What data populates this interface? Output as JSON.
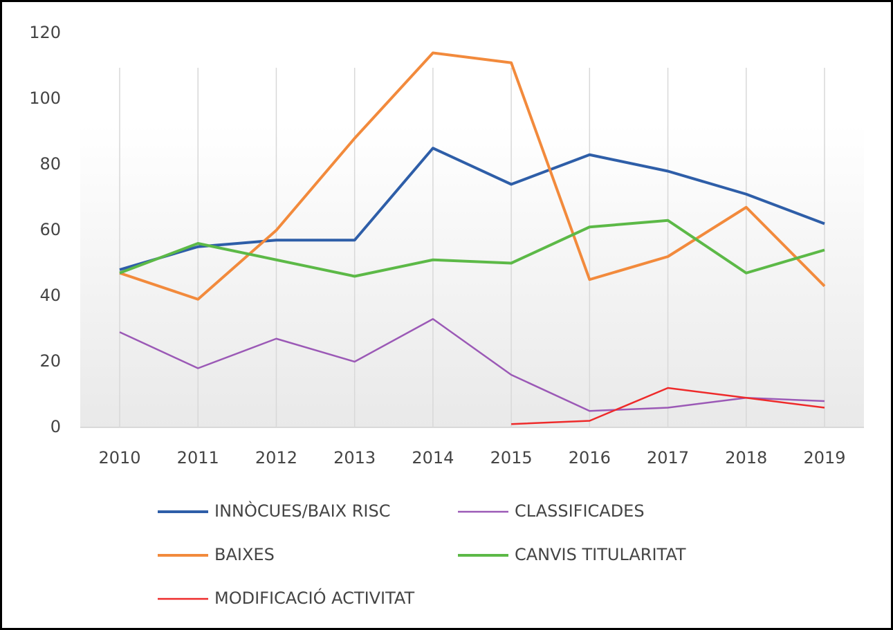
{
  "chart_data": {
    "type": "line",
    "categories": [
      "2010",
      "2011",
      "2012",
      "2013",
      "2014",
      "2015",
      "2016",
      "2017",
      "2018",
      "2019"
    ],
    "series": [
      {
        "name": "INNÒCUES/BAIX RISC",
        "color": "#2e5ea8",
        "values": [
          48,
          55,
          57,
          57,
          85,
          74,
          83,
          78,
          71,
          62
        ]
      },
      {
        "name": "CLASSIFICADES",
        "color": "#9b59b6",
        "values": [
          29,
          18,
          27,
          20,
          33,
          16,
          5,
          6,
          9,
          8
        ]
      },
      {
        "name": "BAIXES",
        "color": "#f28a3c",
        "values": [
          47,
          39,
          60,
          88,
          114,
          111,
          45,
          52,
          67,
          43
        ]
      },
      {
        "name": "CANVIS TITULARITAT",
        "color": "#5cb947",
        "values": [
          47,
          56,
          51,
          46,
          51,
          50,
          61,
          63,
          47,
          54
        ]
      },
      {
        "name": "MODIFICACIÓ ACTIVITAT",
        "color": "#ee2a2a",
        "values": [
          null,
          null,
          null,
          null,
          null,
          1,
          2,
          12,
          9,
          6
        ]
      }
    ],
    "ylim": [
      0,
      120
    ],
    "yticks": [
      0,
      20,
      40,
      60,
      80,
      100,
      120
    ],
    "grid": true,
    "legend": "bottom"
  }
}
